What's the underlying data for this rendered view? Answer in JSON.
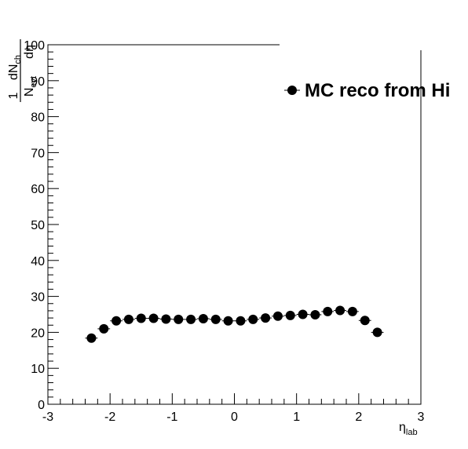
{
  "chart_data": {
    "type": "scatter",
    "title": "",
    "xlabel": "η",
    "xlabel_sub": "lab",
    "ylabel_parts": {
      "numerator_left": "1",
      "numerator_right": "dN",
      "numerator_right_sub": "ch",
      "denominator_left": "N",
      "denominator_left_sub": "evt",
      "denominator_right": "dη"
    },
    "xlim": [
      -3,
      3
    ],
    "ylim": [
      0,
      100
    ],
    "xticks": [
      "-3",
      "-2",
      "-1",
      "0",
      "1",
      "2",
      "3"
    ],
    "yticks": [
      "0",
      "10",
      "20",
      "30",
      "40",
      "50",
      "60",
      "70",
      "80",
      "90",
      "100"
    ],
    "grid": false,
    "legend_placement": "top-right",
    "series": [
      {
        "name": "MC reco from Hi",
        "color": "#000000",
        "marker": "filled-circle",
        "x_error": 0.1,
        "points": [
          {
            "x": -2.3,
            "y": 18.4
          },
          {
            "x": -2.1,
            "y": 21.0
          },
          {
            "x": -1.9,
            "y": 23.2
          },
          {
            "x": -1.7,
            "y": 23.6
          },
          {
            "x": -1.5,
            "y": 23.9
          },
          {
            "x": -1.3,
            "y": 23.9
          },
          {
            "x": -1.1,
            "y": 23.7
          },
          {
            "x": -0.9,
            "y": 23.6
          },
          {
            "x": -0.7,
            "y": 23.6
          },
          {
            "x": -0.5,
            "y": 23.8
          },
          {
            "x": -0.3,
            "y": 23.6
          },
          {
            "x": -0.1,
            "y": 23.2
          },
          {
            "x": 0.1,
            "y": 23.2
          },
          {
            "x": 0.3,
            "y": 23.6
          },
          {
            "x": 0.5,
            "y": 24.0
          },
          {
            "x": 0.7,
            "y": 24.5
          },
          {
            "x": 0.9,
            "y": 24.7
          },
          {
            "x": 1.1,
            "y": 25.0
          },
          {
            "x": 1.3,
            "y": 24.9
          },
          {
            "x": 1.5,
            "y": 25.8
          },
          {
            "x": 1.7,
            "y": 26.1
          },
          {
            "x": 1.9,
            "y": 25.8
          },
          {
            "x": 2.1,
            "y": 23.3
          },
          {
            "x": 2.3,
            "y": 20.0
          }
        ]
      }
    ]
  }
}
